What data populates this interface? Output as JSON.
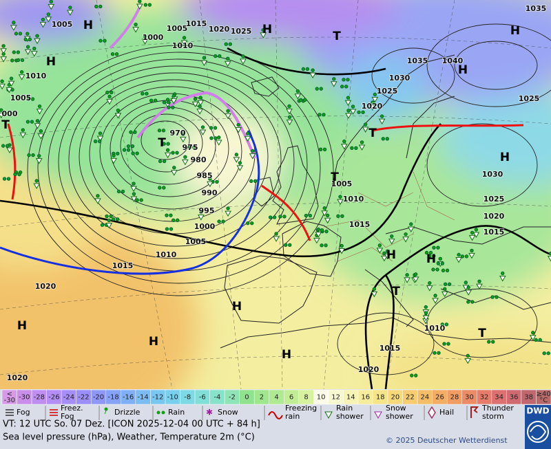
{
  "map": {
    "pressure_labels": [
      "1005",
      "1000",
      "1005",
      "1015",
      "1020",
      "1025",
      "1010",
      "1010",
      "1005",
      "000",
      "970",
      "975",
      "980",
      "985",
      "990",
      "995",
      "1000",
      "1005",
      "1010",
      "1015",
      "1020",
      "1035",
      "1040",
      "1030",
      "1025",
      "1020",
      "1035",
      "1025",
      "1030",
      "1025",
      "1020",
      "1015",
      "1005",
      "1010",
      "1015",
      "1010",
      "1015",
      "1020",
      "1020"
    ],
    "pressure_systems": [
      "H",
      "H",
      "T",
      "T",
      "H",
      "T",
      "H",
      "H",
      "T",
      "H",
      "T",
      "H",
      "H",
      "T",
      "T",
      "H",
      "H",
      "H",
      "H"
    ]
  },
  "scale": {
    "low": [
      "<",
      "-30"
    ],
    "steps": [
      {
        "label": "-30",
        "color": "#c98ee8"
      },
      {
        "label": "-28",
        "color": "#bf8ef0"
      },
      {
        "label": "-26",
        "color": "#b38ef5"
      },
      {
        "label": "-24",
        "color": "#a68ef8"
      },
      {
        "label": "-22",
        "color": "#9a8ff8"
      },
      {
        "label": "-20",
        "color": "#8f98f8"
      },
      {
        "label": "-18",
        "color": "#86a2f7"
      },
      {
        "label": "-16",
        "color": "#7fb0f5"
      },
      {
        "label": "-14",
        "color": "#7cbcf3"
      },
      {
        "label": "-12",
        "color": "#79c6f0"
      },
      {
        "label": "-10",
        "color": "#7ad0ec"
      },
      {
        "label": "-8",
        "color": "#7dd9e4"
      },
      {
        "label": "-6",
        "color": "#82dfd8"
      },
      {
        "label": "-4",
        "color": "#86e2c8"
      },
      {
        "label": "-2",
        "color": "#8ee4b5"
      },
      {
        "label": "0",
        "color": "#8fe38f"
      },
      {
        "label": "2",
        "color": "#9fe68f"
      },
      {
        "label": "4",
        "color": "#afe992"
      },
      {
        "label": "6",
        "color": "#c2ed97"
      },
      {
        "label": "8",
        "color": "#d7f29f"
      },
      {
        "label": "10",
        "color": "#fbfbe8"
      },
      {
        "label": "12",
        "color": "#f8f8d0"
      },
      {
        "label": "14",
        "color": "#f6f3b5"
      },
      {
        "label": "16",
        "color": "#f5ec9c"
      },
      {
        "label": "18",
        "color": "#f5e48a"
      },
      {
        "label": "20",
        "color": "#f5d97a"
      },
      {
        "label": "22",
        "color": "#f5cc70"
      },
      {
        "label": "24",
        "color": "#f4bd68"
      },
      {
        "label": "26",
        "color": "#f3ad64"
      },
      {
        "label": "28",
        "color": "#f09c63"
      },
      {
        "label": "30",
        "color": "#ec8c66"
      },
      {
        "label": "32",
        "color": "#e67d6a"
      },
      {
        "label": "34",
        "color": "#dd7070"
      },
      {
        "label": "36",
        "color": "#cf6a72"
      },
      {
        "label": "38",
        "color": "#c0676e"
      }
    ],
    "high": [
      "≥40",
      "°C"
    ]
  },
  "legend": [
    {
      "label": [
        "Fog"
      ]
    },
    {
      "label": [
        "Freez.",
        "Fog"
      ]
    },
    {
      "label": [
        "Drizzle"
      ]
    },
    {
      "label": [
        "Rain"
      ]
    },
    {
      "label": [
        "Snow"
      ]
    },
    {
      "label": [
        "Freezing",
        "rain"
      ]
    },
    {
      "label": [
        "Rain",
        "shower"
      ]
    },
    {
      "label": [
        "Snow",
        "shower"
      ]
    },
    {
      "label": [
        "Hail"
      ]
    },
    {
      "label": [
        "Thunder",
        "storm"
      ]
    }
  ],
  "footer": {
    "valid_time": "VT: 12 UTC So.  07 Dez. [ICON 2025-12-04  00 UTC + 84 h]",
    "description": "Sea level pressure (hPa), Weather, Temperature 2m (°C)",
    "copyright": "© 2025 Deutscher Wetterdienst",
    "logo": "DWD"
  }
}
